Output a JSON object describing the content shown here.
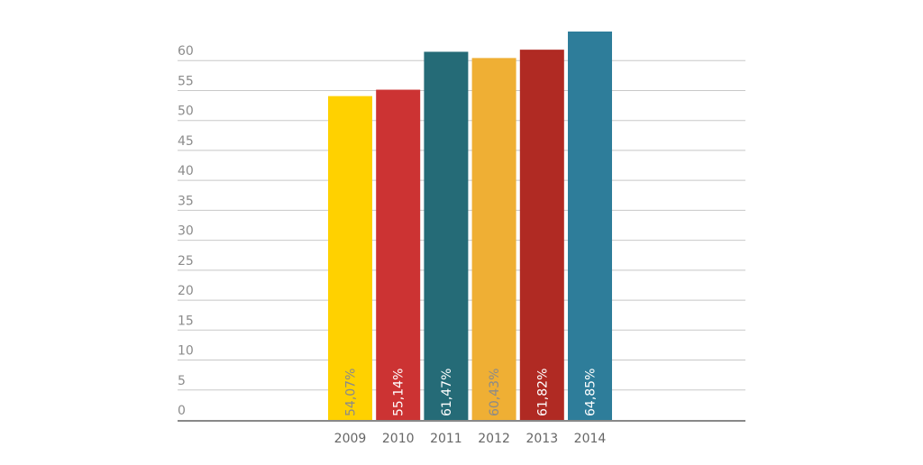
{
  "chart_data": {
    "type": "bar",
    "title": "",
    "xlabel": "",
    "ylabel": "",
    "categories": [
      "2009",
      "2010",
      "2011",
      "2012",
      "2013",
      "2014"
    ],
    "values": [
      54.07,
      55.14,
      61.47,
      60.43,
      61.82,
      64.85
    ],
    "data_labels": [
      "54,07%",
      "55,14%",
      "61,47%",
      "60,43%",
      "61,82%",
      "64,85%"
    ],
    "colors": [
      "#FFD100",
      "#CC3333",
      "#256B77",
      "#EFAF34",
      "#B02A23",
      "#2E7D9A"
    ],
    "label_colors": [
      "#8a8a8a",
      "#ffffff",
      "#ffffff",
      "#8a8a8a",
      "#ffffff",
      "#ffffff"
    ],
    "y_ticks": [
      "0",
      "5",
      "10",
      "15",
      "20",
      "25",
      "30",
      "35",
      "40",
      "45",
      "50",
      "55",
      "60"
    ],
    "ylim": [
      0,
      65
    ],
    "grid": true,
    "legend": "none"
  },
  "style": {
    "grid_color": "#c8c8c8",
    "axis_color": "#888888",
    "tick_text_color": "#8c8c8c",
    "x_text_color": "#666666"
  }
}
